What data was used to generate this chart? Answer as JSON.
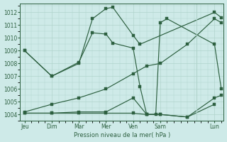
{
  "background_color": "#ceeae8",
  "grid_color": "#b0d4cc",
  "line_color": "#2d6040",
  "xlabel": "Pression niveau de la mer( hPa )",
  "ylim": [
    1003.5,
    1012.7
  ],
  "yticks": [
    1004,
    1005,
    1006,
    1007,
    1008,
    1009,
    1010,
    1011,
    1012
  ],
  "day_labels": [
    "Jeu",
    "Dim",
    "Mar",
    "Mer",
    "Ven",
    "Sam",
    "Lun"
  ],
  "day_positions": [
    0,
    6,
    12,
    18,
    24,
    30,
    42
  ],
  "xlim": [
    -1,
    44
  ],
  "lines": [
    {
      "x": [
        0,
        6,
        12,
        15,
        18,
        19.5,
        24,
        25.5,
        42,
        43.5
      ],
      "y": [
        1009.0,
        1007.0,
        1008.0,
        1011.5,
        1012.3,
        1012.4,
        1010.2,
        1009.5,
        1012.0,
        1011.6
      ]
    },
    {
      "x": [
        0,
        6,
        12,
        15,
        18,
        19.5,
        24,
        25.5,
        27,
        29,
        30,
        31.5,
        42,
        43.5
      ],
      "y": [
        1009.0,
        1007.0,
        1008.1,
        1010.4,
        1010.3,
        1009.6,
        1009.2,
        1006.2,
        1004.0,
        1004.0,
        1011.2,
        1011.5,
        1009.5,
        1006.0
      ]
    },
    {
      "x": [
        0,
        6,
        12,
        18,
        24,
        27,
        30,
        36,
        42,
        43.5
      ],
      "y": [
        1004.2,
        1004.8,
        1005.3,
        1006.0,
        1007.2,
        1007.8,
        1008.0,
        1009.5,
        1011.5,
        1011.2
      ]
    },
    {
      "x": [
        0,
        6,
        12,
        18,
        24,
        27,
        30,
        36,
        42,
        43.5
      ],
      "y": [
        1004.1,
        1004.1,
        1004.2,
        1004.2,
        1005.3,
        1004.0,
        1004.0,
        1003.8,
        1005.3,
        1005.5
      ]
    },
    {
      "x": [
        0,
        6,
        12,
        18,
        24,
        27,
        30,
        36,
        42
      ],
      "y": [
        1004.1,
        1004.1,
        1004.1,
        1004.1,
        1004.1,
        1004.0,
        1004.0,
        1003.8,
        1004.8
      ]
    }
  ]
}
